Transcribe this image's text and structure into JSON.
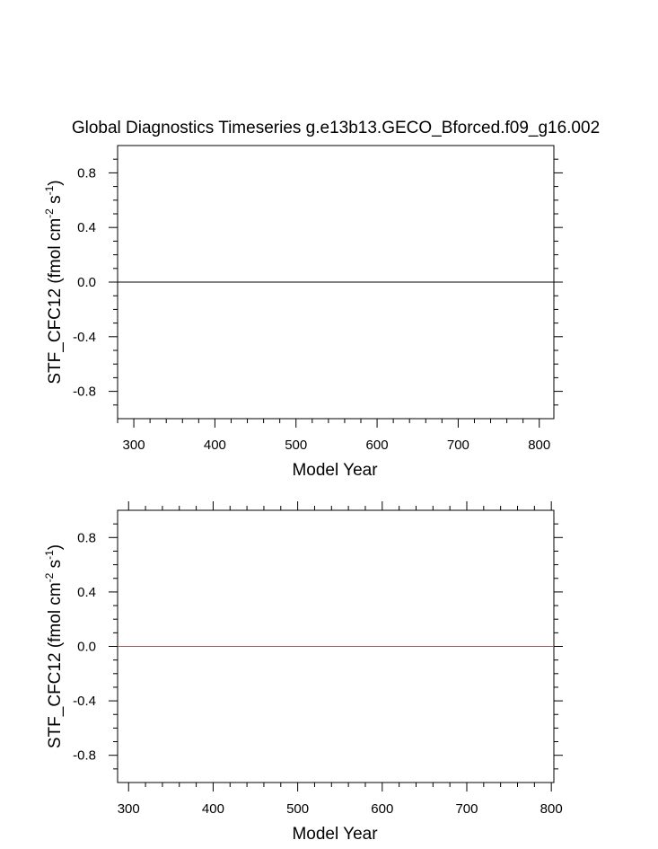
{
  "chart_data": [
    {
      "type": "line",
      "title": "Global Diagnostics Timeseries g.e13b13.GECO_Bforced.f09_g16.002",
      "xlabel": "Model Year",
      "ylabel_prefix": "STF_CFC12 (fmol cm",
      "ylabel_sup1": "-2",
      "ylabel_mid": " s",
      "ylabel_sup2": "-1",
      "ylabel_suffix": ")",
      "xlim": [
        280,
        818
      ],
      "ylim": [
        -1.0,
        1.0
      ],
      "xticks": [
        300,
        400,
        500,
        600,
        700,
        800
      ],
      "xtick_labels": [
        "300",
        "400",
        "500",
        "600",
        "700",
        "800"
      ],
      "yticks": [
        0.8,
        0.4,
        0.0,
        -0.4,
        -0.8
      ],
      "ytick_labels": [
        "0.8",
        "0.4",
        "0.0",
        "-0.4",
        "-0.8"
      ],
      "grid": false,
      "series": [
        {
          "x": [
            280,
            818
          ],
          "y": [
            0.0,
            0.0
          ],
          "color": "#000000"
        }
      ]
    },
    {
      "type": "line",
      "xlabel": "Model Year",
      "ylabel_prefix": "STF_CFC12 (fmol cm",
      "ylabel_sup1": "-2",
      "ylabel_mid": " s",
      "ylabel_sup2": "-1",
      "ylabel_suffix": ")",
      "xlim": [
        287,
        803
      ],
      "ylim": [
        -1.0,
        1.0
      ],
      "xticks": [
        300,
        400,
        500,
        600,
        700,
        800
      ],
      "xtick_labels": [
        "300",
        "400",
        "500",
        "600",
        "700",
        "800"
      ],
      "yticks": [
        0.8,
        0.4,
        0.0,
        -0.4,
        -0.8
      ],
      "ytick_labels": [
        "0.8",
        "0.4",
        "0.0",
        "-0.4",
        "-0.8"
      ],
      "grid": false,
      "series": [
        {
          "x": [
            287,
            803
          ],
          "y": [
            0.0,
            0.0
          ],
          "color": "#a05a5a"
        }
      ]
    }
  ]
}
